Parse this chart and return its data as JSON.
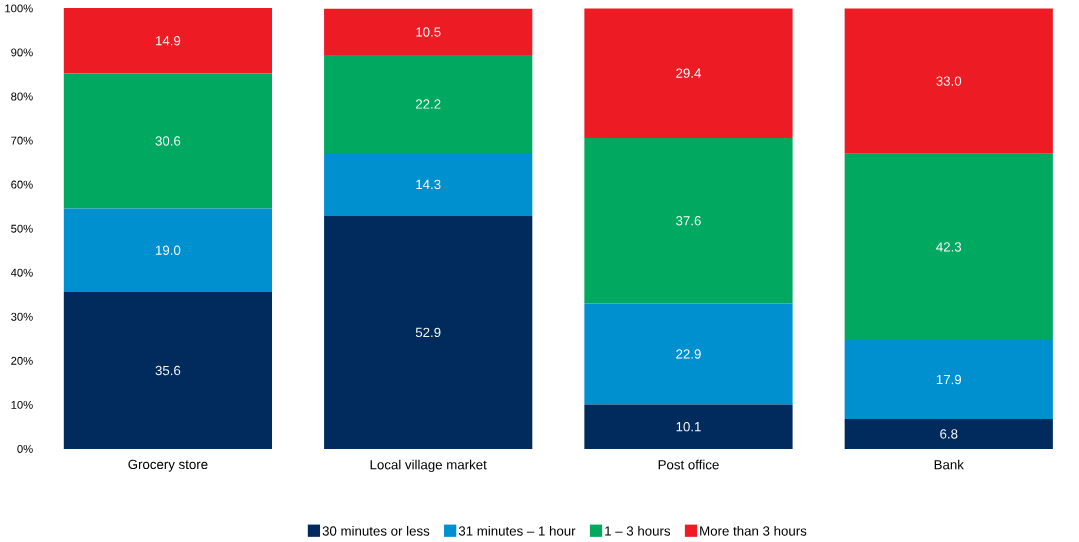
{
  "chart_data": {
    "type": "bar",
    "stacked": true,
    "categories": [
      "Grocery store",
      "Local village market",
      "Post office",
      "Bank"
    ],
    "series": [
      {
        "name": "30 minutes or less",
        "color": "#002b5c",
        "values": [
          35.6,
          52.9,
          10.1,
          6.8
        ],
        "value_labels": [
          "35.6",
          "52.9",
          "10.1",
          "6.8"
        ]
      },
      {
        "name": "31 minutes – 1 hour",
        "color": "#0090d0",
        "values": [
          19.0,
          14.3,
          22.9,
          17.9
        ],
        "value_labels": [
          "19.0",
          "14.3",
          "22.9",
          "17.9"
        ]
      },
      {
        "name": "1 – 3 hours",
        "color": "#00a860",
        "values": [
          30.6,
          22.2,
          37.6,
          42.3
        ],
        "value_labels": [
          "30.6",
          "22.2",
          "37.6",
          "42.3"
        ]
      },
      {
        "name": "More than 3 hours",
        "color": "#ed1c24",
        "values": [
          14.9,
          10.5,
          29.4,
          33.0
        ],
        "value_labels": [
          "14.9",
          "10.5",
          "29.4",
          "33.0"
        ]
      }
    ],
    "ylim": [
      0,
      100.1
    ],
    "yticks": [
      {
        "value": 0,
        "label": "0%"
      },
      {
        "value": 10,
        "label": "10%"
      },
      {
        "value": 20,
        "label": "20%"
      },
      {
        "value": 30,
        "label": "30%"
      },
      {
        "value": 40,
        "label": "40%"
      },
      {
        "value": 50,
        "label": "50%"
      },
      {
        "value": 60,
        "label": "60%"
      },
      {
        "value": 70,
        "label": "70%"
      },
      {
        "value": 80,
        "label": "80%"
      },
      {
        "value": 90,
        "label": "90%"
      },
      {
        "value": 100,
        "label": "100%"
      }
    ],
    "legend": "bottom",
    "grid": false
  }
}
